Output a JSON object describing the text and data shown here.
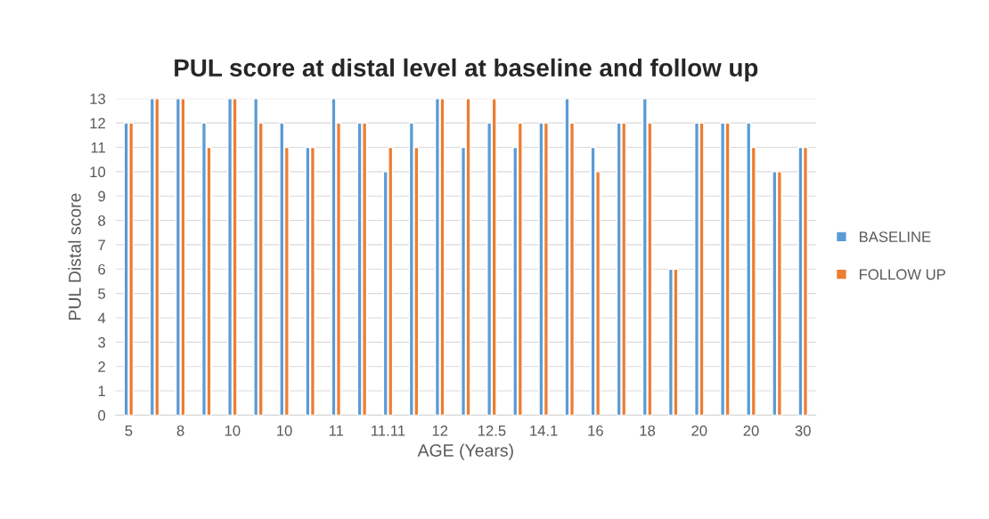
{
  "chart_data": {
    "type": "bar",
    "title": "PUL score at distal level at baseline and follow up",
    "xlabel": "AGE (Years)",
    "ylabel": "PUL Distal score",
    "categories": [
      "5",
      null,
      "8",
      null,
      "10",
      null,
      "10",
      null,
      "11",
      null,
      "11.11",
      null,
      "12",
      null,
      "12.5",
      null,
      "14.1",
      null,
      "16",
      null,
      "18",
      null,
      "20",
      null,
      "20",
      null,
      "30"
    ],
    "series": [
      {
        "name": "BASELINE",
        "color": "#5b9bd5",
        "values": [
          12,
          13,
          13,
          12,
          13,
          13,
          12,
          11,
          13,
          12,
          10,
          12,
          13,
          11,
          12,
          11,
          12,
          13,
          11,
          12,
          13,
          6,
          12,
          12,
          12,
          10,
          11
        ]
      },
      {
        "name": "FOLLOW UP",
        "color": "#ed7d31",
        "values": [
          12,
          13,
          13,
          11,
          13,
          12,
          11,
          11,
          12,
          12,
          11,
          11,
          13,
          13,
          13,
          12,
          12,
          12,
          10,
          12,
          12,
          6,
          12,
          12,
          11,
          10,
          11
        ]
      }
    ],
    "ylim": [
      0,
      13
    ],
    "yticks": [
      0,
      1,
      2,
      3,
      4,
      5,
      6,
      7,
      8,
      9,
      10,
      11,
      12,
      13
    ],
    "grid": "y",
    "legend": "right"
  }
}
